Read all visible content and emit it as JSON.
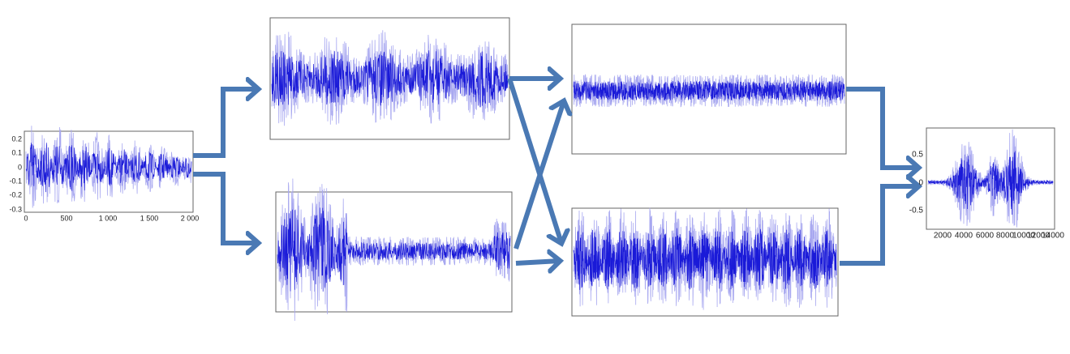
{
  "panels": [
    {
      "yticks": [
        "0.2",
        "0.1",
        "0",
        "-0.1",
        "-0.2",
        "-0.3"
      ],
      "xticks": [
        "0",
        "500",
        "1 000",
        "1 500",
        "2 000"
      ]
    },
    {
      "yticks": [
        "0.5",
        "0",
        "-0.5"
      ],
      "xticks": [
        "2000",
        "4000",
        "6000",
        "8000",
        "10000",
        "12000",
        "14000"
      ]
    }
  ]
}
